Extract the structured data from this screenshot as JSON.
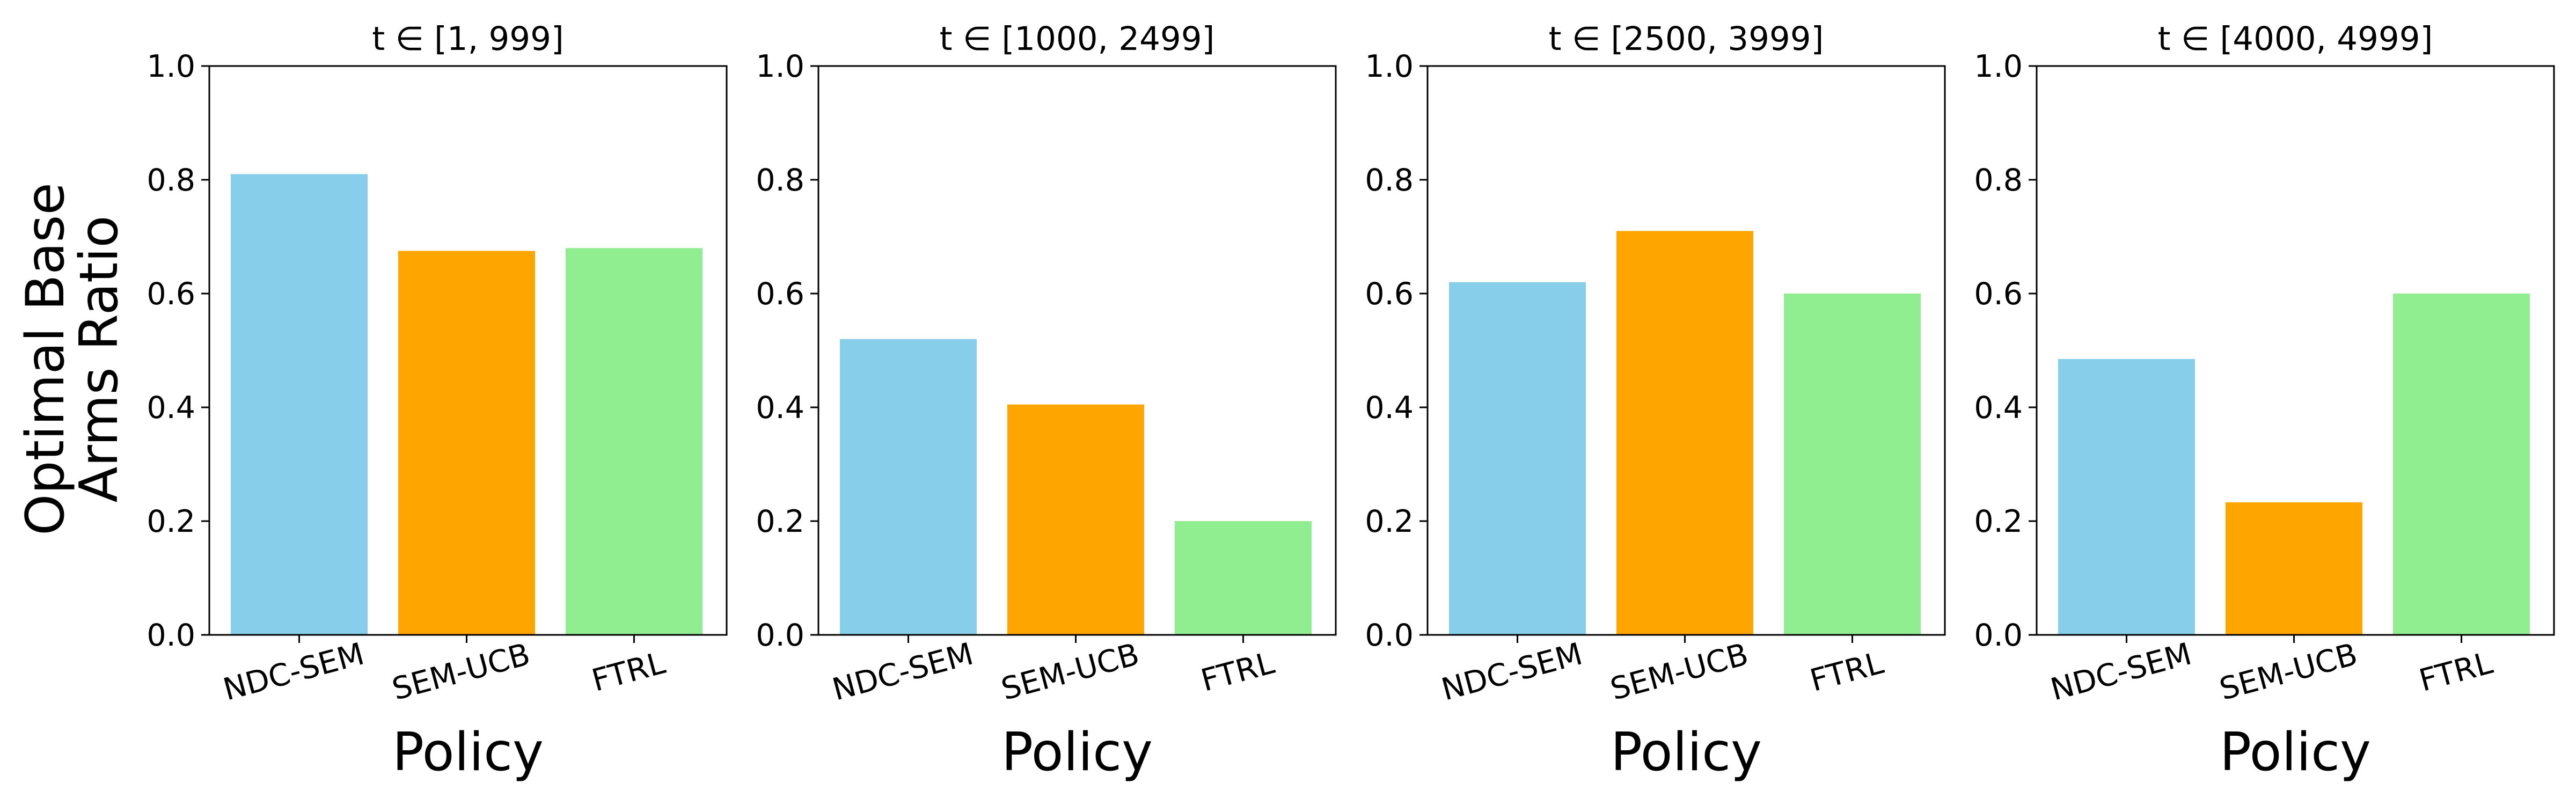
{
  "ylabel_lines": [
    "Optimal Base",
    "Arms Ratio"
  ],
  "chart_data": [
    {
      "type": "bar",
      "title": "t ∈ [1, 999]",
      "xlabel": "Policy",
      "categories": [
        "NDC-SEM",
        "SEM-UCB",
        "FTRL"
      ],
      "values": [
        0.81,
        0.675,
        0.68
      ],
      "colors": [
        "#87ceeb",
        "#ffa500",
        "#90ee90"
      ],
      "ylim": [
        0,
        1.0
      ],
      "yticks": [
        "0.0",
        "0.2",
        "0.4",
        "0.6",
        "0.8",
        "1.0"
      ],
      "grid": false
    },
    {
      "type": "bar",
      "title": "t ∈ [1000, 2499]",
      "xlabel": "Policy",
      "categories": [
        "NDC-SEM",
        "SEM-UCB",
        "FTRL"
      ],
      "values": [
        0.52,
        0.405,
        0.2
      ],
      "colors": [
        "#87ceeb",
        "#ffa500",
        "#90ee90"
      ],
      "ylim": [
        0,
        1.0
      ],
      "yticks": [
        "0.0",
        "0.2",
        "0.4",
        "0.6",
        "0.8",
        "1.0"
      ],
      "grid": false
    },
    {
      "type": "bar",
      "title": "t ∈ [2500, 3999]",
      "xlabel": "Policy",
      "categories": [
        "NDC-SEM",
        "SEM-UCB",
        "FTRL"
      ],
      "values": [
        0.62,
        0.71,
        0.6
      ],
      "colors": [
        "#87ceeb",
        "#ffa500",
        "#90ee90"
      ],
      "ylim": [
        0,
        1.0
      ],
      "yticks": [
        "0.0",
        "0.2",
        "0.4",
        "0.6",
        "0.8",
        "1.0"
      ],
      "grid": false
    },
    {
      "type": "bar",
      "title": "t ∈ [4000, 4999]",
      "xlabel": "Policy",
      "categories": [
        "NDC-SEM",
        "SEM-UCB",
        "FTRL"
      ],
      "values": [
        0.485,
        0.233,
        0.6
      ],
      "colors": [
        "#87ceeb",
        "#ffa500",
        "#90ee90"
      ],
      "ylim": [
        0,
        1.0
      ],
      "yticks": [
        "0.0",
        "0.2",
        "0.4",
        "0.6",
        "0.8",
        "1.0"
      ],
      "grid": false
    }
  ]
}
